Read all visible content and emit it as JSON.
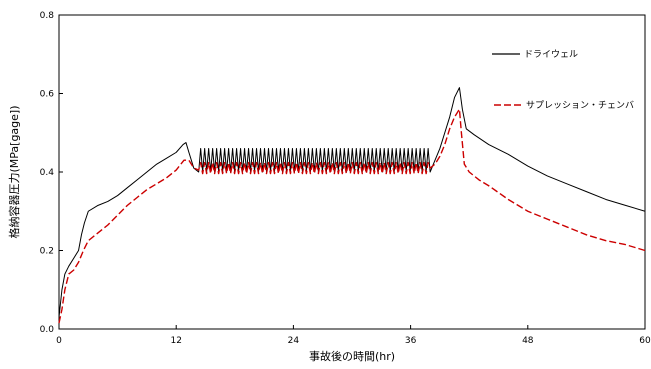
{
  "chart_data": {
    "type": "line",
    "xlabel": "事故後の時間(hr)",
    "ylabel": "格納容器圧力(MPa[gage])",
    "xlim": [
      0,
      60
    ],
    "ylim": [
      0,
      0.8
    ],
    "xticks": [
      0,
      12,
      24,
      36,
      48,
      60
    ],
    "yticks": [
      0.0,
      0.2,
      0.4,
      0.6,
      0.8
    ],
    "ytick_labels": [
      "0.0",
      "0.2",
      "0.4",
      "0.6",
      "0.8"
    ],
    "xtick_labels": [
      "0",
      "12",
      "24",
      "36",
      "48",
      "60"
    ],
    "grid": false,
    "legend_position": "right",
    "series": [
      {
        "name": "ドライウェル",
        "color": "#000000",
        "style": "solid",
        "points": [
          [
            0,
            0.03
          ],
          [
            0.3,
            0.1
          ],
          [
            0.6,
            0.14
          ],
          [
            1.0,
            0.16
          ],
          [
            1.5,
            0.18
          ],
          [
            2.0,
            0.2
          ],
          [
            2.3,
            0.24
          ],
          [
            2.6,
            0.27
          ],
          [
            3.0,
            0.3
          ],
          [
            4.0,
            0.315
          ],
          [
            5.0,
            0.325
          ],
          [
            6.0,
            0.34
          ],
          [
            7.0,
            0.36
          ],
          [
            8.0,
            0.38
          ],
          [
            9.0,
            0.4
          ],
          [
            10.0,
            0.42
          ],
          [
            11.0,
            0.435
          ],
          [
            12.0,
            0.45
          ],
          [
            12.7,
            0.47
          ],
          [
            13.0,
            0.475
          ],
          [
            13.3,
            0.45
          ],
          [
            13.8,
            0.41
          ],
          [
            14.3,
            0.4
          ],
          [
            38.0,
            0.4
          ],
          [
            38.5,
            0.43
          ],
          [
            39.0,
            0.46
          ],
          [
            39.5,
            0.5
          ],
          [
            40.0,
            0.54
          ],
          [
            40.5,
            0.59
          ],
          [
            41.0,
            0.615
          ],
          [
            41.3,
            0.56
          ],
          [
            41.7,
            0.51
          ],
          [
            42.5,
            0.495
          ],
          [
            44.0,
            0.47
          ],
          [
            46.0,
            0.445
          ],
          [
            48.0,
            0.415
          ],
          [
            50.0,
            0.39
          ],
          [
            52.0,
            0.37
          ],
          [
            54.0,
            0.35
          ],
          [
            56.0,
            0.33
          ],
          [
            58.0,
            0.315
          ],
          [
            60.0,
            0.3
          ]
        ],
        "oscillation": {
          "x_start": 14.3,
          "x_end": 38.0,
          "center": 0.43,
          "amplitude": 0.03,
          "cycles": 58
        }
      },
      {
        "name": "サプレッション・チェンバ",
        "color": "#cc0000",
        "style": "dashed",
        "points": [
          [
            0,
            0.015
          ],
          [
            0.3,
            0.05
          ],
          [
            0.6,
            0.1
          ],
          [
            1.0,
            0.14
          ],
          [
            1.5,
            0.15
          ],
          [
            2.0,
            0.17
          ],
          [
            2.5,
            0.2
          ],
          [
            3.0,
            0.225
          ],
          [
            4.0,
            0.245
          ],
          [
            5.0,
            0.265
          ],
          [
            6.0,
            0.29
          ],
          [
            7.0,
            0.315
          ],
          [
            8.0,
            0.335
          ],
          [
            9.0,
            0.355
          ],
          [
            10.0,
            0.37
          ],
          [
            11.0,
            0.385
          ],
          [
            12.0,
            0.405
          ],
          [
            12.8,
            0.43
          ],
          [
            13.3,
            0.43
          ],
          [
            13.8,
            0.41
          ],
          [
            14.3,
            0.405
          ],
          [
            38.0,
            0.41
          ],
          [
            38.5,
            0.42
          ],
          [
            39.0,
            0.44
          ],
          [
            39.5,
            0.47
          ],
          [
            40.0,
            0.51
          ],
          [
            40.5,
            0.54
          ],
          [
            41.0,
            0.56
          ],
          [
            41.2,
            0.5
          ],
          [
            41.5,
            0.42
          ],
          [
            42.0,
            0.4
          ],
          [
            43.0,
            0.38
          ],
          [
            44.0,
            0.365
          ],
          [
            46.0,
            0.33
          ],
          [
            48.0,
            0.3
          ],
          [
            50.0,
            0.28
          ],
          [
            52.0,
            0.26
          ],
          [
            54.0,
            0.24
          ],
          [
            56.0,
            0.225
          ],
          [
            58.0,
            0.215
          ],
          [
            60.0,
            0.2
          ]
        ],
        "oscillation": {
          "x_start": 14.3,
          "x_end": 38.0,
          "center": 0.41,
          "amplitude": 0.014,
          "cycles": 58
        }
      }
    ]
  }
}
